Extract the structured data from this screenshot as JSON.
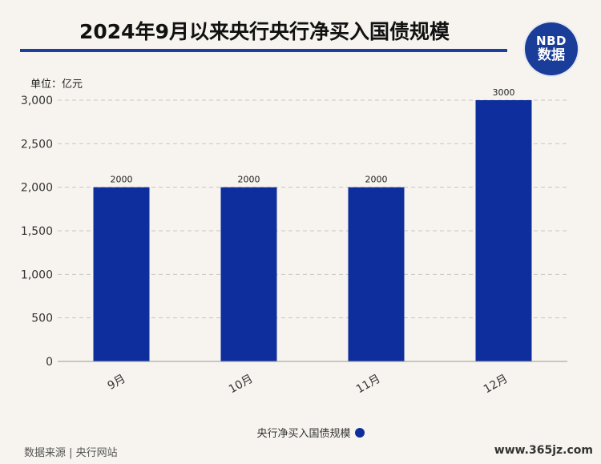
{
  "header": {
    "title": "2024年9月以来央行央行净买入国债规模",
    "logo_top": "NBD",
    "logo_bottom": "数据"
  },
  "unit_label": "单位：亿元",
  "legend_label": "央行净买入国债规模",
  "source": "数据来源 | 央行网站",
  "site_watermark": "www.365jz.com",
  "colors": {
    "bar": "#0d2e9c",
    "accent": "#1d3fa0"
  },
  "chart_data": {
    "type": "bar",
    "categories": [
      "9月",
      "10月",
      "11月",
      "12月"
    ],
    "series": [
      {
        "name": "央行净买入国债规模",
        "values": [
          2000,
          2000,
          2000,
          3000
        ]
      }
    ],
    "data_labels": [
      "2000",
      "2000",
      "2000",
      "3000"
    ],
    "y_ticks": [
      0,
      500,
      1000,
      1500,
      2000,
      2500,
      3000
    ],
    "y_tick_labels": [
      "0",
      "500",
      "1,000",
      "1,500",
      "2,000",
      "2,500",
      "3,000"
    ],
    "ylim": [
      0,
      3000
    ],
    "grid": true,
    "legend_position": "bottom"
  }
}
